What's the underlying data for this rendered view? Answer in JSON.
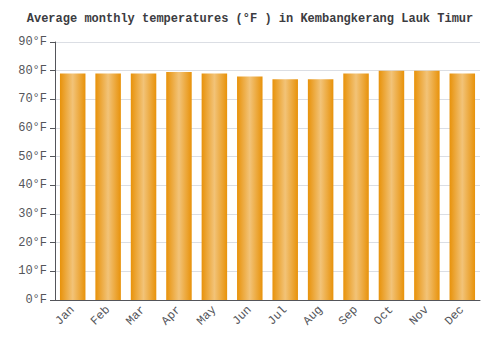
{
  "chart_data": {
    "type": "bar",
    "title": "Average monthly temperatures (°F ) in Kembangkerang Lauk Timur",
    "categories": [
      "Jan",
      "Feb",
      "Mar",
      "Apr",
      "May",
      "Jun",
      "Jul",
      "Aug",
      "Sep",
      "Oct",
      "Nov",
      "Dec"
    ],
    "values": [
      79,
      79,
      79,
      79.5,
      79,
      78,
      77,
      77,
      79,
      80,
      80,
      79
    ],
    "color": "#E8920A",
    "ylim": [
      0,
      90
    ],
    "yticks": [
      {
        "value": 0,
        "label": "0°F"
      },
      {
        "value": 10,
        "label": "10°F"
      },
      {
        "value": 20,
        "label": "20°F"
      },
      {
        "value": 30,
        "label": "30°F"
      },
      {
        "value": 40,
        "label": "40°F"
      },
      {
        "value": 50,
        "label": "50°F"
      },
      {
        "value": 60,
        "label": "60°F"
      },
      {
        "value": 70,
        "label": "70°F"
      },
      {
        "value": 80,
        "label": "80°F"
      },
      {
        "value": 90,
        "label": "90°F"
      }
    ],
    "grid": true
  }
}
